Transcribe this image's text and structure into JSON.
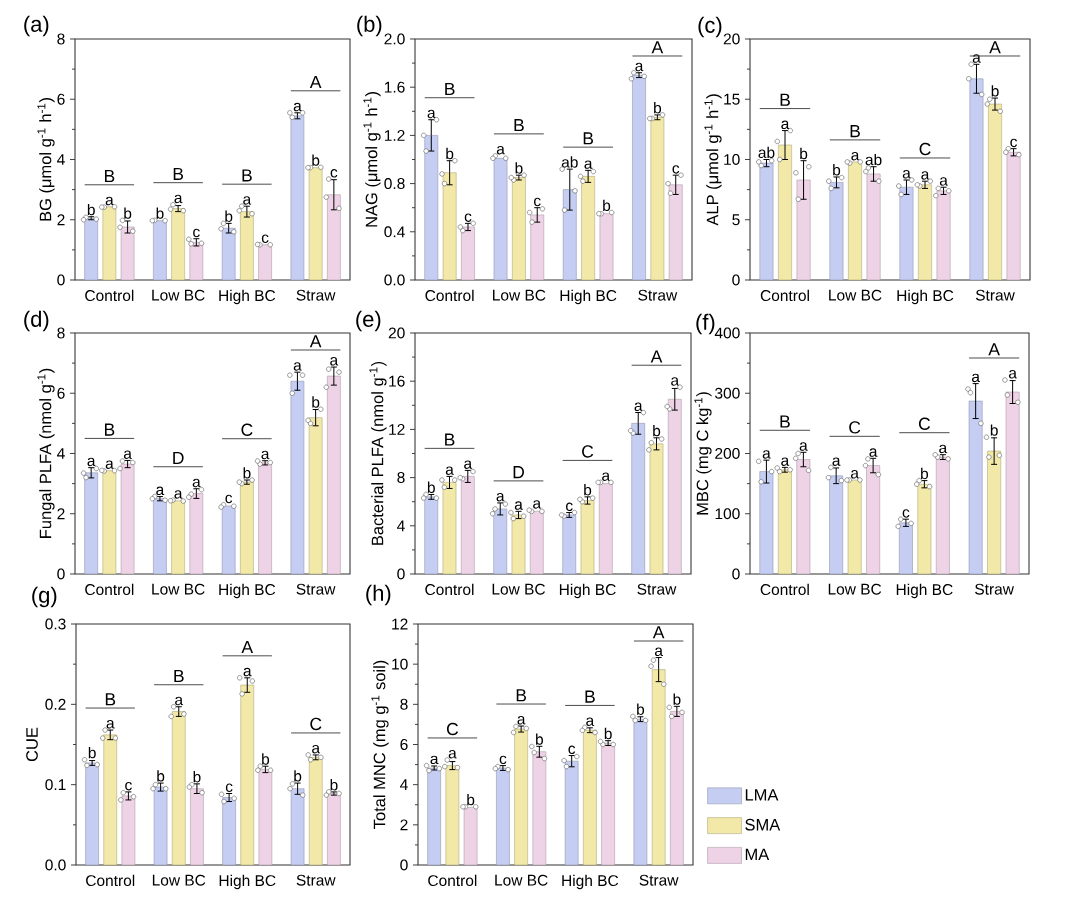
{
  "chart_data": [
    {
      "type": "bar",
      "title": "(a)",
      "ylabel": "BG (μmol g$^{-1}$ h$^{-1}$)",
      "categories": [
        "Control",
        "Low BC",
        "High BC",
        "Straw"
      ],
      "ylim": [
        0,
        8
      ],
      "yticks": [
        0,
        {
          "value": 1,
          "label": null
        },
        2,
        {
          "value": 3,
          "label": null
        },
        4,
        {
          "value": 5,
          "label": null
        },
        6,
        {
          "value": 7,
          "label": null
        },
        8
      ],
      "series": [
        {
          "color": "#c5cef2",
          "values": [
            2.05,
            1.97,
            1.72,
            5.45
          ],
          "errors": [
            0.05,
            null,
            0.16,
            0.1
          ],
          "value_labels": [
            "b",
            "b",
            "b",
            "a"
          ]
        },
        {
          "color": "#f2e8a8",
          "values": [
            2.43,
            2.37,
            2.27,
            3.73
          ],
          "errors": [
            null,
            0.1,
            0.18,
            null
          ],
          "value_labels": [
            "a",
            "a",
            "a",
            "b"
          ]
        },
        {
          "color": "#eed3e6",
          "values": [
            1.76,
            1.25,
            1.17,
            2.83
          ],
          "errors": [
            0.2,
            0.12,
            null,
            0.5
          ],
          "value_labels": [
            "b",
            "c",
            "c",
            "c"
          ]
        },
        {
          "type": "scatter",
          "marker": "circle",
          "color": "#ffffff",
          "x": [
            "Control",
            "Control",
            "Control",
            "Low BC",
            "Low BC",
            "Low BC",
            "High BC",
            "High BC",
            "High BC",
            "Straw",
            "Straw",
            "Straw"
          ],
          "values": [
            2.08,
            2.02,
            2.0,
            1.98,
            1.97,
            1.97,
            1.88,
            1.6,
            1.7,
            5.4,
            5.55,
            5.55
          ]
        },
        {
          "type": "scatter",
          "marker": "circle",
          "color": "#ffffff",
          "x": [
            "Control",
            "Control",
            "Control",
            "Low BC",
            "Low BC",
            "Low BC",
            "High BC",
            "High BC",
            "High BC",
            "Straw",
            "Straw",
            "Straw"
          ],
          "values": [
            2.42,
            2.43,
            2.42,
            2.5,
            2.3,
            2.35,
            2.45,
            2.2,
            2.3,
            3.73,
            3.74,
            3.73
          ]
        },
        {
          "type": "scatter",
          "marker": "circle",
          "color": "#ffffff",
          "x": [
            "Control",
            "Control",
            "Control",
            "Low BC",
            "Low BC",
            "Low BC",
            "High BC",
            "High BC",
            "High BC",
            "Straw",
            "Straw",
            "Straw"
          ],
          "values": [
            1.98,
            1.62,
            1.75,
            1.2,
            1.22,
            1.35,
            1.17,
            1.17,
            1.18,
            3.35,
            2.38,
            2.75
          ]
        }
      ],
      "annotations": [
        "B",
        "B",
        "B",
        "A"
      ]
    },
    {
      "type": "bar",
      "title": "(b)",
      "ylabel": "NAG (μmol g$^{-1}$ h$^{-1}$)",
      "categories": [
        "Control",
        "Low BC",
        "High BC",
        "Straw"
      ],
      "ylim": [
        0,
        2
      ],
      "yticks": [
        {
          "value": 0,
          "label": "0.0"
        },
        {
          "value": 0.2,
          "label": null
        },
        0.4,
        {
          "value": 0.6,
          "label": null
        },
        0.8,
        {
          "value": 1.0,
          "label": null
        },
        1.2,
        {
          "value": 1.4,
          "label": null
        },
        1.6,
        {
          "value": 1.8,
          "label": null
        },
        {
          "value": 2,
          "label": "2.0"
        }
      ],
      "series": [
        {
          "color": "#c5cef2",
          "values": [
            1.2,
            1.01,
            0.75,
            1.7
          ],
          "errors": [
            0.13,
            null,
            0.17,
            0.02
          ],
          "value_labels": [
            "a",
            "a",
            "ab",
            "a"
          ]
        },
        {
          "color": "#f2e8a8",
          "values": [
            0.89,
            0.85,
            0.86,
            1.35
          ],
          "errors": [
            0.1,
            0.02,
            0.05,
            0.02
          ],
          "value_labels": [
            "b",
            "b",
            "a",
            "b"
          ]
        },
        {
          "color": "#eed3e6",
          "values": [
            0.44,
            0.54,
            0.55,
            0.79
          ],
          "errors": [
            0.03,
            0.06,
            null,
            0.08
          ],
          "value_labels": [
            "c",
            "c",
            "b",
            "c"
          ]
        },
        {
          "type": "scatter",
          "marker": "circle",
          "color": "#ffffff",
          "x": [
            "Control",
            "Control",
            "Control",
            "Low BC",
            "Low BC",
            "Low BC",
            "High BC",
            "High BC",
            "High BC",
            "Straw",
            "Straw",
            "Straw"
          ],
          "values": [
            1.07,
            1.33,
            1.2,
            1.03,
            1.01,
            1.01,
            0.58,
            0.74,
            0.92,
            1.72,
            1.69,
            1.67
          ]
        },
        {
          "type": "scatter",
          "marker": "circle",
          "color": "#ffffff",
          "x": [
            "Control",
            "Control",
            "Control",
            "Low BC",
            "Low BC",
            "Low BC",
            "High BC",
            "High BC",
            "High BC",
            "Straw",
            "Straw",
            "Straw"
          ],
          "values": [
            0.8,
            0.99,
            0.88,
            0.83,
            0.87,
            0.85,
            0.82,
            0.9,
            0.86,
            1.34,
            1.37,
            1.34
          ]
        },
        {
          "type": "scatter",
          "marker": "circle",
          "color": "#ffffff",
          "x": [
            "Control",
            "Control",
            "Control",
            "Low BC",
            "Low BC",
            "Low BC",
            "High BC",
            "High BC",
            "High BC",
            "Straw",
            "Straw",
            "Straw"
          ],
          "values": [
            0.41,
            0.47,
            0.44,
            0.48,
            0.59,
            0.56,
            0.55,
            0.56,
            0.55,
            0.72,
            0.87,
            0.8
          ]
        }
      ],
      "annotations": [
        "B",
        "B",
        "B",
        "A"
      ]
    },
    {
      "type": "bar",
      "title": "(c)",
      "ylabel": "ALP (μmol g$^{-1}$ h$^{-1}$)",
      "categories": [
        "Control",
        "Low BC",
        "High BC",
        "Straw"
      ],
      "ylim": [
        0,
        20
      ],
      "yticks": [
        0,
        {
          "value": 2.5,
          "label": null
        },
        5,
        {
          "value": 7.5,
          "label": null
        },
        10,
        {
          "value": 12.5,
          "label": null
        },
        15,
        {
          "value": 17.5,
          "label": null
        },
        20
      ],
      "series": [
        {
          "color": "#c5cef2",
          "values": [
            9.7,
            8.1,
            7.7,
            16.7
          ],
          "errors": [
            0.3,
            0.45,
            0.6,
            1.2
          ],
          "value_labels": [
            "ab",
            "b",
            "a",
            "a"
          ]
        },
        {
          "color": "#f2e8a8",
          "values": [
            11.2,
            9.8,
            7.9,
            14.6
          ],
          "errors": [
            1.2,
            null,
            0.3,
            0.5
          ],
          "value_labels": [
            "a",
            "a",
            "a",
            "b"
          ]
        },
        {
          "color": "#eed3e6",
          "values": [
            8.3,
            8.8,
            7.4,
            10.6
          ],
          "errors": [
            1.6,
            0.6,
            0.3,
            0.3
          ],
          "value_labels": [
            "b",
            "ab",
            "a",
            "c"
          ]
        },
        {
          "type": "scatter",
          "marker": "circle",
          "color": "#ffffff",
          "x": [
            "Control",
            "Control",
            "Control",
            "Low BC",
            "Low BC",
            "Low BC",
            "High BC",
            "High BC",
            "High BC",
            "Straw",
            "Straw",
            "Straw"
          ],
          "values": [
            9.5,
            9.9,
            9.8,
            7.6,
            8.5,
            8.2,
            7.1,
            8.3,
            7.8,
            17.9,
            15.4,
            16.7
          ]
        },
        {
          "type": "scatter",
          "marker": "circle",
          "color": "#ffffff",
          "x": [
            "Control",
            "Control",
            "Control",
            "Low BC",
            "Low BC",
            "Low BC",
            "High BC",
            "High BC",
            "High BC",
            "Straw",
            "Straw",
            "Straw"
          ],
          "values": [
            10.0,
            12.4,
            11.5,
            9.7,
            9.8,
            9.8,
            7.8,
            8.2,
            7.9,
            15.0,
            14.0,
            14.6
          ]
        },
        {
          "type": "scatter",
          "marker": "circle",
          "color": "#ffffff",
          "x": [
            "Control",
            "Control",
            "Control",
            "Low BC",
            "Low BC",
            "Low BC",
            "High BC",
            "High BC",
            "High BC",
            "Straw",
            "Straw",
            "Straw"
          ],
          "values": [
            6.7,
            9.4,
            8.9,
            9.3,
            8.2,
            9.0,
            7.6,
            7.4,
            7.0,
            10.9,
            10.4,
            10.6
          ]
        }
      ],
      "annotations": [
        "B",
        "B",
        "C",
        "A"
      ]
    },
    {
      "type": "bar",
      "title": "(d)",
      "ylabel": "Fungal PLFA (nmol g$^{-1}$)",
      "categories": [
        "Control",
        "Low BC",
        "High BC",
        "Straw"
      ],
      "ylim": [
        0,
        8
      ],
      "yticks": [
        0,
        {
          "value": 1,
          "label": null
        },
        2,
        {
          "value": 3,
          "label": null
        },
        4,
        {
          "value": 5,
          "label": null
        },
        6,
        {
          "value": 7,
          "label": null
        },
        8
      ],
      "series": [
        {
          "color": "#c5cef2",
          "values": [
            3.36,
            2.5,
            2.26,
            6.4
          ],
          "errors": [
            0.17,
            0.07,
            null,
            0.3
          ],
          "value_labels": [
            "a",
            "a",
            "c",
            "a"
          ]
        },
        {
          "color": "#f2e8a8",
          "values": [
            3.43,
            2.43,
            3.05,
            5.19
          ],
          "errors": [
            null,
            null,
            0.07,
            0.27
          ],
          "value_labels": [
            "a",
            "a",
            "b",
            "b"
          ]
        },
        {
          "color": "#eed3e6",
          "values": [
            3.65,
            2.67,
            3.69,
            6.57
          ],
          "errors": [
            0.12,
            0.16,
            0.07,
            0.3
          ],
          "value_labels": [
            "a",
            "a",
            "a",
            "a"
          ]
        },
        {
          "type": "scatter",
          "marker": "circle",
          "color": "#ffffff",
          "x": [
            "Control",
            "Control",
            "Control",
            "Low BC",
            "Low BC",
            "Low BC",
            "High BC",
            "High BC",
            "High BC",
            "Straw",
            "Straw",
            "Straw"
          ],
          "values": [
            3.2,
            3.5,
            3.35,
            2.57,
            2.45,
            2.5,
            2.3,
            2.25,
            2.22,
            6.0,
            6.6,
            6.6
          ]
        },
        {
          "type": "scatter",
          "marker": "circle",
          "color": "#ffffff",
          "x": [
            "Control",
            "Control",
            "Control",
            "Low BC",
            "Low BC",
            "Low BC",
            "High BC",
            "High BC",
            "High BC",
            "Straw",
            "Straw",
            "Straw"
          ],
          "values": [
            3.42,
            3.43,
            3.44,
            2.45,
            2.42,
            2.43,
            3.0,
            3.12,
            3.05,
            5.0,
            5.47,
            5.1
          ]
        },
        {
          "type": "scatter",
          "marker": "circle",
          "color": "#ffffff",
          "x": [
            "Control",
            "Control",
            "Control",
            "Low BC",
            "Low BC",
            "Low BC",
            "High BC",
            "High BC",
            "High BC",
            "Straw",
            "Straw",
            "Straw"
          ],
          "values": [
            3.75,
            3.7,
            3.5,
            2.65,
            2.8,
            2.55,
            3.65,
            3.7,
            3.75,
            6.8,
            6.7,
            6.2
          ]
        }
      ],
      "annotations": [
        "B",
        "D",
        "C",
        "A"
      ]
    },
    {
      "type": "bar",
      "title": "(e)",
      "ylabel": "Bacterial PLFA (nmol g$^{-1}$)",
      "categories": [
        "Control",
        "Low BC",
        "High BC",
        "Straw"
      ],
      "ylim": [
        0,
        20
      ],
      "yticks": [
        0,
        {
          "value": 2,
          "label": null
        },
        4,
        {
          "value": 6,
          "label": null
        },
        8,
        {
          "value": 10,
          "label": null
        },
        12,
        {
          "value": 14,
          "label": null
        },
        16,
        {
          "value": 18,
          "label": null
        },
        20
      ],
      "series": [
        {
          "color": "#c5cef2",
          "values": [
            6.4,
            5.4,
            4.9,
            12.5
          ],
          "errors": [
            0.2,
            0.5,
            0.2,
            0.9
          ],
          "value_labels": [
            "b",
            "a",
            "c",
            "a"
          ]
        },
        {
          "color": "#f2e8a8",
          "values": [
            7.6,
            4.9,
            6.1,
            10.8
          ],
          "errors": [
            0.5,
            0.3,
            0.3,
            0.5
          ],
          "value_labels": [
            "a",
            "a",
            "b",
            "b"
          ]
        },
        {
          "color": "#eed3e6",
          "values": [
            8.1,
            5.2,
            7.5,
            14.5
          ],
          "errors": [
            0.5,
            null,
            null,
            0.9
          ],
          "value_labels": [
            "a",
            "a",
            "a",
            "a"
          ]
        },
        {
          "type": "scatter",
          "marker": "circle",
          "color": "#ffffff",
          "x": [
            "Control",
            "Control",
            "Control",
            "Low BC",
            "Low BC",
            "Low BC",
            "High BC",
            "High BC",
            "High BC",
            "Straw",
            "Straw",
            "Straw"
          ],
          "values": [
            6.6,
            6.3,
            6.3,
            5.4,
            5.8,
            5.0,
            4.8,
            5.1,
            4.9,
            11.7,
            13.4,
            11.9
          ]
        },
        {
          "type": "scatter",
          "marker": "circle",
          "color": "#ffffff",
          "x": [
            "Control",
            "Control",
            "Control",
            "Low BC",
            "Low BC",
            "Low BC",
            "High BC",
            "High BC",
            "High BC",
            "Straw",
            "Straw",
            "Straw"
          ],
          "values": [
            7.2,
            7.8,
            7.8,
            4.6,
            4.8,
            5.1,
            6.0,
            6.3,
            6.2,
            10.9,
            11.2,
            10.3
          ]
        },
        {
          "type": "scatter",
          "marker": "circle",
          "color": "#ffffff",
          "x": [
            "Control",
            "Control",
            "Control",
            "Low BC",
            "Low BC",
            "Low BC",
            "High BC",
            "High BC",
            "High BC",
            "Straw",
            "Straw",
            "Straw"
          ],
          "values": [
            7.9,
            8.5,
            8.0,
            5.2,
            5.2,
            5.3,
            7.6,
            7.6,
            7.6,
            13.7,
            15.5,
            13.9
          ]
        }
      ],
      "annotations": [
        "B",
        "D",
        "C",
        "A"
      ]
    },
    {
      "type": "bar",
      "title": "(f)",
      "ylabel": "MBC (mg C kg$^{-1}$)",
      "categories": [
        "Control",
        "Low BC",
        "High BC",
        "Straw"
      ],
      "ylim": [
        0,
        400
      ],
      "yticks": [
        0,
        {
          "value": 50,
          "label": null
        },
        100,
        {
          "value": 150,
          "label": null
        },
        200,
        {
          "value": 250,
          "label": null
        },
        300,
        {
          "value": 350,
          "label": null
        },
        400
      ],
      "series": [
        {
          "color": "#c5cef2",
          "values": [
            170,
            163,
            85,
            287
          ],
          "errors": [
            19,
            13,
            6,
            29
          ],
          "value_labels": [
            "a",
            "a",
            "c",
            "a"
          ]
        },
        {
          "color": "#f2e8a8",
          "values": [
            173,
            156,
            149,
            204
          ],
          "errors": [
            4,
            null,
            6,
            22
          ],
          "value_labels": [
            "a",
            "a",
            "b",
            "b"
          ]
        },
        {
          "color": "#eed3e6",
          "values": [
            190,
            180,
            194,
            302
          ],
          "errors": [
            12,
            12,
            4,
            19
          ],
          "value_labels": [
            "a",
            "a",
            "a",
            "a"
          ]
        },
        {
          "type": "scatter",
          "marker": "circle",
          "color": "#ffffff",
          "x": [
            "Control",
            "Control",
            "Control",
            "Low BC",
            "Low BC",
            "Low BC",
            "High BC",
            "High BC",
            "High BC",
            "Straw",
            "Straw",
            "Straw"
          ],
          "values": [
            153,
            170,
            187,
            177,
            155,
            160,
            91,
            84,
            79,
            301,
            250,
            307
          ]
        },
        {
          "type": "scatter",
          "marker": "circle",
          "color": "#ffffff",
          "x": [
            "Control",
            "Control",
            "Control",
            "Low BC",
            "Low BC",
            "Low BC",
            "High BC",
            "High BC",
            "High BC",
            "Straw",
            "Straw",
            "Straw"
          ],
          "values": [
            170,
            173,
            176,
            156,
            156,
            156,
            155,
            145,
            149,
            194,
            197,
            227
          ]
        },
        {
          "type": "scatter",
          "marker": "circle",
          "color": "#ffffff",
          "x": [
            "Control",
            "Control",
            "Control",
            "Low BC",
            "Low BC",
            "Low BC",
            "High BC",
            "High BC",
            "High BC",
            "Straw",
            "Straw",
            "Straw"
          ],
          "values": [
            200,
            172,
            192,
            191,
            165,
            180,
            194,
            191,
            198,
            297,
            285,
            322
          ]
        }
      ],
      "annotations": [
        "B",
        "C",
        "C",
        "A"
      ]
    },
    {
      "type": "bar",
      "title": "(g)",
      "ylabel": "CUE",
      "categories": [
        "Control",
        "Low BC",
        "High BC",
        "Straw"
      ],
      "ylim": [
        0,
        0.3
      ],
      "yticks": [
        {
          "value": 0,
          "label": "0.0"
        },
        {
          "value": 0.05,
          "label": null
        },
        0.1,
        {
          "value": 0.15,
          "label": null
        },
        0.2,
        {
          "value": 0.25,
          "label": null
        },
        0.3
      ],
      "series": [
        {
          "color": "#c5cef2",
          "values": [
            0.127,
            0.097,
            0.084,
            0.095
          ],
          "errors": [
            0.003,
            0.005,
            0.005,
            0.007
          ],
          "value_labels": [
            "b",
            "b",
            "c",
            "b"
          ]
        },
        {
          "color": "#f2e8a8",
          "values": [
            0.162,
            0.191,
            0.224,
            0.134
          ],
          "errors": [
            0.006,
            0.006,
            0.009,
            0.003
          ],
          "value_labels": [
            "a",
            "a",
            "a",
            "a"
          ]
        },
        {
          "color": "#eed3e6",
          "values": [
            0.086,
            0.095,
            0.119,
            0.089
          ],
          "errors": [
            0.005,
            0.006,
            0.004,
            0.002
          ],
          "value_labels": [
            "c",
            "b",
            "b",
            "b"
          ]
        },
        {
          "type": "scatter",
          "marker": "circle",
          "color": "#ffffff",
          "x": [
            "Control",
            "Control",
            "Control",
            "Low BC",
            "Low BC",
            "Low BC",
            "High BC",
            "High BC",
            "High BC",
            "Straw",
            "Straw",
            "Straw"
          ],
          "values": [
            0.124,
            0.125,
            0.131,
            0.1,
            0.095,
            0.095,
            0.079,
            0.083,
            0.088,
            0.101,
            0.087,
            0.095
          ]
        },
        {
          "type": "scatter",
          "marker": "circle",
          "color": "#ffffff",
          "x": [
            "Control",
            "Control",
            "Control",
            "Low BC",
            "Low BC",
            "Low BC",
            "High BC",
            "High BC",
            "High BC",
            "Straw",
            "Straw",
            "Straw"
          ],
          "values": [
            0.168,
            0.158,
            0.158,
            0.197,
            0.188,
            0.185,
            0.213,
            0.229,
            0.233,
            0.131,
            0.134,
            0.137
          ]
        },
        {
          "type": "scatter",
          "marker": "circle",
          "color": "#ffffff",
          "x": [
            "Control",
            "Control",
            "Control",
            "Low BC",
            "Low BC",
            "Low BC",
            "High BC",
            "High BC",
            "High BC",
            "Straw",
            "Straw",
            "Straw"
          ],
          "values": [
            0.09,
            0.085,
            0.081,
            0.1,
            0.09,
            0.097,
            0.123,
            0.118,
            0.118,
            0.091,
            0.089,
            0.087
          ]
        }
      ],
      "annotations": [
        "B",
        "B",
        "A",
        "C"
      ]
    },
    {
      "type": "bar",
      "title": "(h)",
      "ylabel": "Total MNC (mg g$^{-1}$ soil)",
      "categories": [
        "Control",
        "Low BC",
        "High BC",
        "Straw"
      ],
      "ylim": [
        0,
        12
      ],
      "legend": "right",
      "yticks": [
        0,
        {
          "value": 1,
          "label": null
        },
        2,
        {
          "value": 3,
          "label": null
        },
        4,
        {
          "value": 5,
          "label": null
        },
        6,
        {
          "value": 7,
          "label": null
        },
        8,
        {
          "value": 9,
          "label": null
        },
        10,
        {
          "value": 11,
          "label": null
        },
        12
      ],
      "series": [
        {
          "name": "LMA",
          "color": "#c5cef2",
          "values": [
            4.83,
            4.83,
            5.17,
            7.26
          ],
          "errors": [
            0.1,
            0.12,
            0.28,
            0.12
          ],
          "value_labels": [
            "a",
            "c",
            "c",
            "b"
          ]
        },
        {
          "name": "SMA",
          "color": "#f2e8a8",
          "values": [
            4.95,
            6.77,
            6.71,
            9.73
          ],
          "errors": [
            0.2,
            0.15,
            0.12,
            0.6
          ],
          "value_labels": [
            "a",
            "a",
            "a",
            "a"
          ]
        },
        {
          "name": "MA",
          "color": "#eed3e6",
          "values": [
            2.86,
            5.64,
            6.07,
            7.65
          ],
          "errors": [
            null,
            0.27,
            0.12,
            0.25
          ],
          "value_labels": [
            "b",
            "b",
            "b",
            "b"
          ]
        },
        {
          "type": "scatter",
          "marker": "circle",
          "color": "#ffffff",
          "x": [
            "Control",
            "Control",
            "Control",
            "Low BC",
            "Low BC",
            "Low BC",
            "High BC",
            "High BC",
            "High BC",
            "Straw",
            "Straw",
            "Straw"
          ],
          "values": [
            4.7,
            4.8,
            4.95,
            4.9,
            4.75,
            4.8,
            4.9,
            5.4,
            5.2,
            7.2,
            7.2,
            7.4
          ]
        },
        {
          "type": "scatter",
          "marker": "circle",
          "color": "#ffffff",
          "x": [
            "Control",
            "Control",
            "Control",
            "Low BC",
            "Low BC",
            "Low BC",
            "High BC",
            "High BC",
            "High BC",
            "Straw",
            "Straw",
            "Straw"
          ],
          "values": [
            5.23,
            4.85,
            4.9,
            6.9,
            6.8,
            6.6,
            6.85,
            6.6,
            6.7,
            10.2,
            9.0,
            9.9
          ]
        },
        {
          "type": "scatter",
          "marker": "circle",
          "color": "#ffffff",
          "x": [
            "Control",
            "Control",
            "Control",
            "Low BC",
            "Low BC",
            "Low BC",
            "High BC",
            "High BC",
            "High BC",
            "Straw",
            "Straw",
            "Straw"
          ],
          "values": [
            2.9,
            2.9,
            2.9,
            5.6,
            5.3,
            5.9,
            6.0,
            6.0,
            6.15,
            7.4,
            7.6,
            7.85
          ]
        }
      ],
      "annotations": [
        "C",
        "B",
        "B",
        "A"
      ]
    }
  ]
}
